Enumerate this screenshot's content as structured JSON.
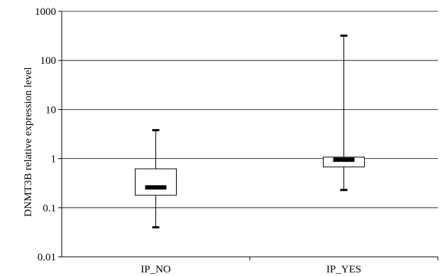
{
  "chart_data": {
    "type": "boxplot",
    "title": "",
    "xlabel": "",
    "ylabel": "DNMT3B relative expression level",
    "yscale": "log",
    "ylim": [
      0.01,
      1000
    ],
    "yticks": [
      {
        "value": 0.01,
        "label": "0.01"
      },
      {
        "value": 0.1,
        "label": "0.1"
      },
      {
        "value": 1,
        "label": "1"
      },
      {
        "value": 10,
        "label": "10"
      },
      {
        "value": 100,
        "label": "100"
      },
      {
        "value": 1000,
        "label": "1000"
      }
    ],
    "grid": true,
    "categories": [
      "IP_NO",
      "IP_YES"
    ],
    "boxes": [
      {
        "category": "IP_NO",
        "min": 0.04,
        "q1": 0.18,
        "median": 0.26,
        "q3": 0.62,
        "max": 3.8
      },
      {
        "category": "IP_YES",
        "min": 0.23,
        "q1": 0.68,
        "median": 0.95,
        "q3": 1.08,
        "max": 320
      }
    ]
  }
}
